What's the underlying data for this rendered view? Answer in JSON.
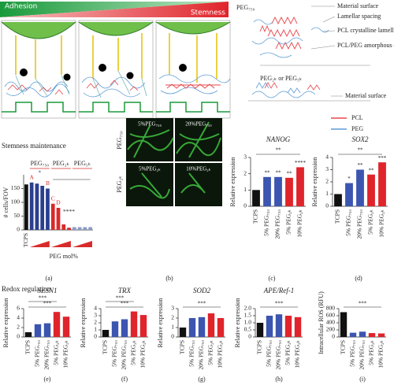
{
  "figure": {
    "gradient": {
      "left": "Adhesion",
      "right": "Stemness"
    },
    "structure": {
      "title": "PEG₇₅₀",
      "labels": [
        "Material surface",
        "Lamellar spacing",
        "PCL crystalline lamellae",
        "PCL/PEG amorphous domains"
      ],
      "title2": "PEG₂ₖ or PEG₅ₖ",
      "label2": "Material surface",
      "legend": [
        {
          "name": "PCL",
          "color": "#e8474c"
        },
        {
          "name": "PEG",
          "color": "#5b9bd5"
        }
      ]
    },
    "sections": [
      "Stemness maintenance",
      "Redox regulation"
    ],
    "micrographs": {
      "rows": [
        "PEG₇₅₀",
        "PEG₂ₖ"
      ],
      "panels": [
        "5%PEG₇₅₀",
        "20%PEG₇₅₀",
        "5%PEG₂ₖ",
        "10%PEG₂ₖ"
      ],
      "panel_label": "(b)"
    }
  },
  "chart_data": [
    {
      "type": "bar",
      "panel": "(a)",
      "y_label": "# cells/FOV",
      "x_label": "PEG mol%",
      "categories": [
        "TCPS",
        null,
        null,
        null,
        null,
        null,
        null,
        null,
        null,
        null,
        null,
        null,
        null
      ],
      "values": [
        165,
        172,
        168,
        160,
        150,
        95,
        80,
        20,
        8,
        10,
        10,
        10,
        10
      ],
      "colors": [
        "#111111",
        "#2b3f8f",
        "#2b3f8f",
        "#2b3f8f",
        "#2b3f8f",
        "#d92b2b",
        "#d92b2b",
        "#d92b2b",
        "#d92b2b",
        "#8a9bc8",
        "#8a9bc8",
        "#8a9bc8",
        "#8a9bc8"
      ],
      "group_labels": [
        "PEG₇₅₀",
        "PEG₂ₖ",
        "PEG₅ₖ"
      ],
      "annotations": [
        "A",
        "B",
        "C",
        "D",
        "*",
        "****"
      ],
      "ylim": [
        0,
        200
      ],
      "yticks": [
        0,
        50,
        100,
        150
      ]
    },
    {
      "type": "bar",
      "panel": "(c)",
      "title": "NANOG",
      "y_label": "Relative expression",
      "categories": [
        "TCPS",
        "5% PEG₇₅₀",
        "20% PEG₇₅₀",
        "5% PEG₂ₖ",
        "10% PEG₂ₖ"
      ],
      "values": [
        1.0,
        1.8,
        1.8,
        1.75,
        2.4
      ],
      "colors": [
        "#111111",
        "#3b55b0",
        "#3b55b0",
        "#e0242b",
        "#e0242b"
      ],
      "annotations": [
        "**",
        "**",
        "**",
        "****",
        "**"
      ],
      "ylim": [
        0,
        3
      ],
      "yticks": [
        0,
        1,
        2,
        3
      ]
    },
    {
      "type": "bar",
      "panel": "(d)",
      "title": "SOX2",
      "y_label": "Relative expression",
      "categories": [
        "TCPS",
        "5% PEG₇₅₀",
        "20% PEG₇₅₀",
        "5% PEG₂ₖ",
        "10% PEG₂ₖ"
      ],
      "values": [
        1.0,
        1.9,
        3.0,
        2.6,
        3.6
      ],
      "colors": [
        "#111111",
        "#3b55b0",
        "#3b55b0",
        "#e0242b",
        "#e0242b"
      ],
      "annotations": [
        "*",
        "**",
        "**",
        "***",
        "**"
      ],
      "ylim": [
        0,
        4
      ],
      "yticks": [
        0,
        1,
        2,
        3,
        4
      ]
    },
    {
      "type": "bar",
      "panel": "(e)",
      "title": "SESN1",
      "y_label": "Relative expression",
      "categories": [
        "TCPS",
        "5% PEG₇₅₀",
        "20% PEG₇₅₀",
        "5% PEG₂ₖ",
        "10% PEG₂ₖ"
      ],
      "values": [
        1.0,
        2.7,
        2.9,
        5.3,
        4.3
      ],
      "colors": [
        "#111111",
        "#3b55b0",
        "#3b55b0",
        "#e0242b",
        "#e0242b"
      ],
      "annotations": [
        "***",
        "***"
      ],
      "ylim": [
        0,
        6
      ],
      "yticks": [
        0,
        2,
        4,
        6
      ]
    },
    {
      "type": "bar",
      "panel": "(f)",
      "title": "TRX",
      "y_label": "Relative expression",
      "categories": [
        "TCPS",
        "5% PEG₇₅₀",
        "20% PEG₇₅₀",
        "5% PEG₂ₖ",
        "10% PEG₂ₖ"
      ],
      "values": [
        1.0,
        2.2,
        2.5,
        3.6,
        3.1
      ],
      "colors": [
        "#111111",
        "#3b55b0",
        "#3b55b0",
        "#e0242b",
        "#e0242b"
      ],
      "annotations": [
        "***",
        "***"
      ],
      "ylim": [
        0,
        4
      ],
      "yticks": [
        0,
        1,
        2,
        3,
        4
      ]
    },
    {
      "type": "bar",
      "panel": "(g)",
      "title": "SOD2",
      "y_label": "Relative expression",
      "categories": [
        "TCPS",
        "5% PEG₇₅₀",
        "20% PEG₇₅₀",
        "5% PEG₂ₖ",
        "10% PEG₂ₖ"
      ],
      "values": [
        1.0,
        2.0,
        2.1,
        2.5,
        2.0
      ],
      "colors": [
        "#111111",
        "#3b55b0",
        "#3b55b0",
        "#e0242b",
        "#e0242b"
      ],
      "annotations": [
        "***"
      ],
      "ylim": [
        0,
        3
      ],
      "yticks": [
        0,
        1,
        2,
        3
      ]
    },
    {
      "type": "bar",
      "panel": "(h)",
      "title": "APE/Ref-1",
      "y_label": "Relative expression",
      "categories": [
        "TCPS",
        "5% PEG₇₅₀",
        "20% PEG₇₅₀",
        "5% PEG₂ₖ",
        "10% PEG₂ₖ"
      ],
      "values": [
        1.0,
        1.5,
        1.6,
        1.5,
        1.4
      ],
      "colors": [
        "#111111",
        "#3b55b0",
        "#3b55b0",
        "#e0242b",
        "#e0242b"
      ],
      "annotations": [
        "***"
      ],
      "ylim": [
        0,
        2
      ],
      "yticks": [
        0,
        0.5,
        {
          "value": 1,
          "label": "1.0"
        },
        1.5,
        {
          "value": 2,
          "label": "2.0"
        }
      ]
    },
    {
      "type": "bar",
      "panel": "(i)",
      "y_label": "Intracellular ROS (RFU)",
      "categories": [
        "TCPS",
        "5% PEG₇₅₀",
        "20% PEG₇₅₀",
        "5% PEG₂ₖ",
        "10% PEG₂ₖ"
      ],
      "values": [
        700,
        120,
        150,
        110,
        100
      ],
      "colors": [
        "#111111",
        "#3b55b0",
        "#3b55b0",
        "#e0242b",
        "#e0242b"
      ],
      "annotations": [
        "***"
      ],
      "ylim": [
        0,
        800
      ],
      "yticks": [
        0,
        200,
        400,
        600,
        800
      ]
    }
  ]
}
